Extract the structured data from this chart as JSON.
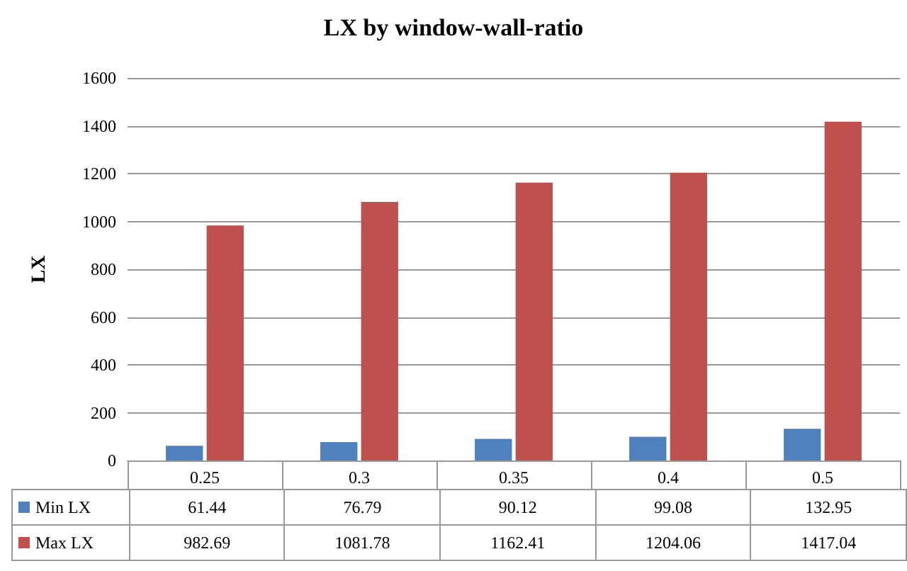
{
  "chart_data": {
    "type": "bar",
    "title": "LX by window-wall-ratio",
    "ylabel": "LX",
    "categories": [
      "0.25",
      "0.3",
      "0.35",
      "0.4",
      "0.5"
    ],
    "series": [
      {
        "name": "Min LX",
        "color": "#4f81bd",
        "values": [
          61.44,
          76.79,
          90.12,
          99.08,
          132.95
        ]
      },
      {
        "name": "Max LX",
        "color": "#c0504d",
        "values": [
          982.69,
          1081.78,
          1162.41,
          1204.06,
          1417.04
        ]
      }
    ],
    "ylim": [
      0,
      1600
    ],
    "yticks": [
      0,
      200,
      400,
      600,
      800,
      1000,
      1200,
      1400,
      1600
    ],
    "grid": "y",
    "legend": "bottom",
    "data_labels": true
  }
}
